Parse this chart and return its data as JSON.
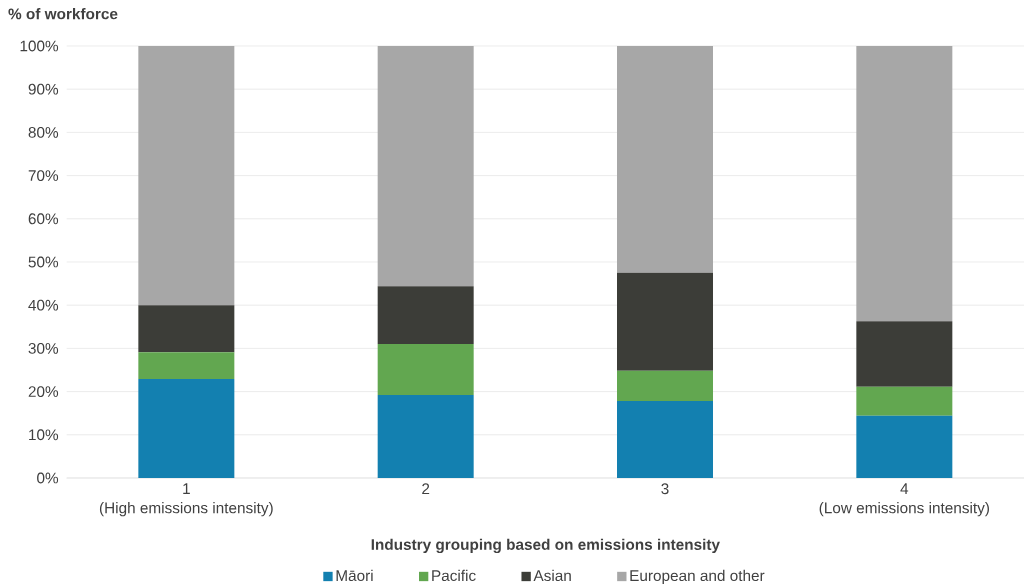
{
  "chart_data": {
    "type": "bar",
    "stacked": true,
    "xlabel": "Industry grouping based on emissions intensity",
    "ylabel": "% of workforce",
    "categories": [
      "1",
      "2",
      "3",
      "4"
    ],
    "series": [
      {
        "name": "Māori",
        "color": "#1380b0",
        "values": [
          22.9,
          19.2,
          17.8,
          14.4
        ]
      },
      {
        "name": "Pacific",
        "color": "#62a750",
        "values": [
          6.2,
          11.8,
          7.0,
          6.7
        ]
      },
      {
        "name": "Asian",
        "color": "#3c3d38",
        "values": [
          10.9,
          13.4,
          22.7,
          15.2
        ]
      },
      {
        "name": "European and other",
        "color": "#a7a7a7",
        "values": [
          60.0,
          55.6,
          52.5,
          63.7
        ]
      }
    ],
    "ylim": [
      0,
      100
    ],
    "yticks": [
      {
        "value": 0,
        "label": "0%"
      },
      {
        "value": 10,
        "label": "10%"
      },
      {
        "value": 20,
        "label": "20%"
      },
      {
        "value": 30,
        "label": "30%"
      },
      {
        "value": 40,
        "label": "40%"
      },
      {
        "value": 50,
        "label": "50%"
      },
      {
        "value": 60,
        "label": "60%"
      },
      {
        "value": 70,
        "label": "70%"
      },
      {
        "value": 80,
        "label": "80%"
      },
      {
        "value": 90,
        "label": "90%"
      },
      {
        "value": 100,
        "label": "100%"
      }
    ],
    "annotations": [
      "(High emissions intensity)",
      "(Low emissions intensity)"
    ],
    "grid": "y",
    "legend": "bottom"
  }
}
